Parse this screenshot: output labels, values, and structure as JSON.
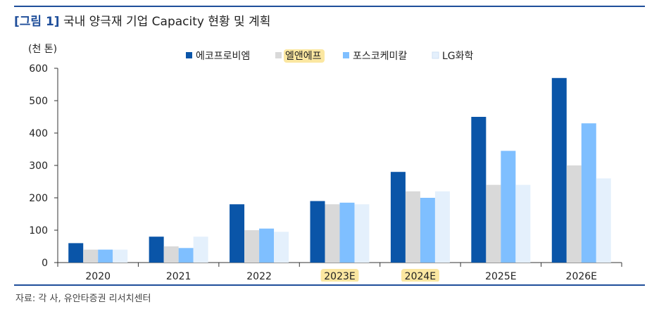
{
  "title": {
    "tag": "[그림 1]",
    "text": "국내 양극재 기업 Capacity 현황 및 계획"
  },
  "source": "자료: 각 사, 유안타증권 리서치센터",
  "chart_data": {
    "type": "bar",
    "ylabel": "(천 톤)",
    "ylim": [
      0,
      600
    ],
    "yticks": [
      0,
      100,
      200,
      300,
      400,
      500,
      600
    ],
    "categories": [
      "2020",
      "2021",
      "2022",
      "2023E",
      "2024E",
      "2025E",
      "2026E"
    ],
    "highlighted_categories": [
      "2023E",
      "2024E"
    ],
    "legend_position": "top-center",
    "grid": false,
    "series": [
      {
        "name": "에코프로비엠",
        "color": "#0a55a8",
        "values": [
          60,
          80,
          180,
          190,
          280,
          450,
          570
        ]
      },
      {
        "name": "엘앤에프",
        "color": "#d9d9d9",
        "highlighted": true,
        "values": [
          40,
          50,
          100,
          180,
          220,
          240,
          300
        ]
      },
      {
        "name": "포스코케미칼",
        "color": "#7fbfff",
        "values": [
          40,
          45,
          105,
          185,
          200,
          345,
          430
        ]
      },
      {
        "name": "LG화학",
        "color": "#e4f0fc",
        "values": [
          40,
          80,
          95,
          180,
          220,
          240,
          260
        ]
      }
    ]
  }
}
